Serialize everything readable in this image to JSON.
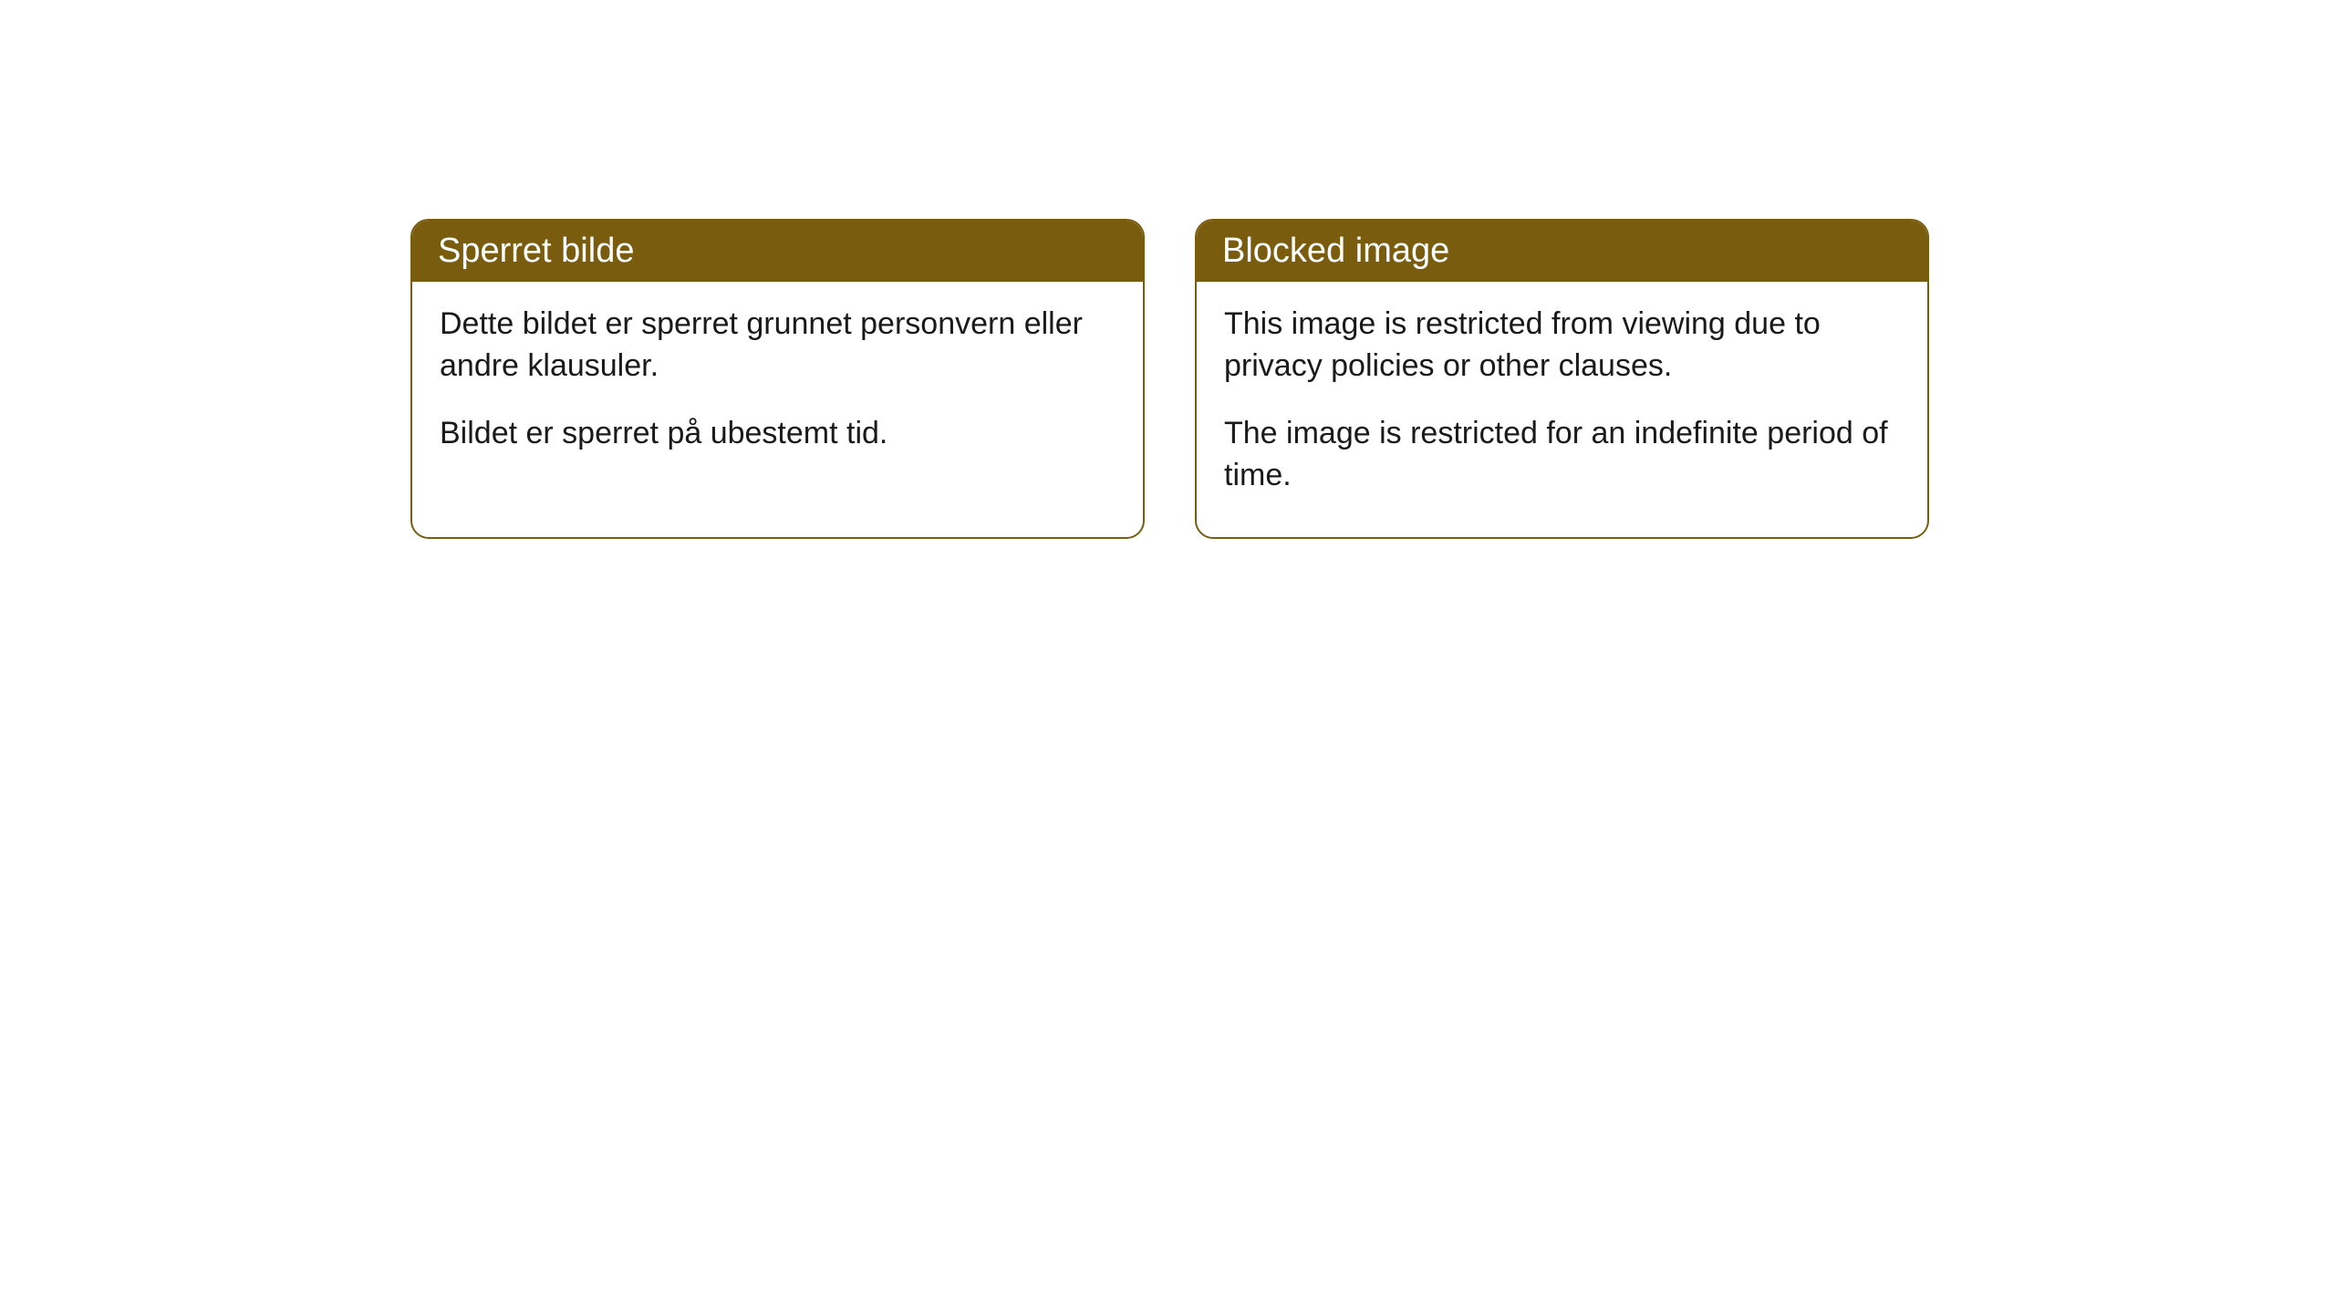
{
  "cards": [
    {
      "title": "Sperret bilde",
      "paragraph1": "Dette bildet er sperret grunnet personvern eller andre klausuler.",
      "paragraph2": "Bildet er sperret på ubestemt tid."
    },
    {
      "title": "Blocked image",
      "paragraph1": "This image is restricted from viewing due to privacy policies or other clauses.",
      "paragraph2": "The image is restricted for an indefinite period of time."
    }
  ],
  "styling": {
    "header_bg_color": "#7a5c0f",
    "header_text_color": "#ffffff",
    "border_color": "#7a5c0f",
    "body_bg_color": "#ffffff",
    "body_text_color": "#1a1a1a",
    "border_radius": 20,
    "header_font_size": 38,
    "body_font_size": 34
  }
}
